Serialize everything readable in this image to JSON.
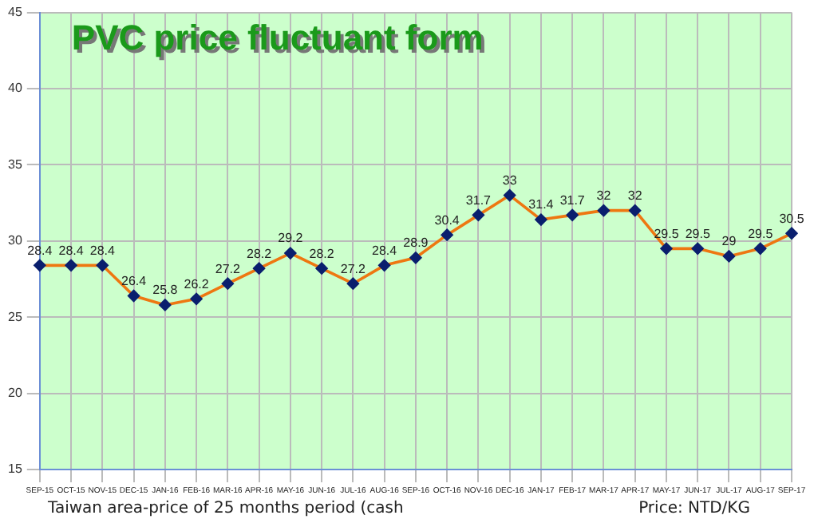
{
  "chart_data": {
    "type": "line",
    "title": "PVC price fluctuant form",
    "categories": [
      "SEP-15",
      "OCT-15",
      "NOV-15",
      "DEC-15",
      "JAN-16",
      "FEB-16",
      "MAR-16",
      "APR-16",
      "MAY-16",
      "JUN-16",
      "JUL-16",
      "AUG-16",
      "SEP-16",
      "OCT-16",
      "NOV-16",
      "DEC-16",
      "JAN-17",
      "FEB-17",
      "MAR-17",
      "APR-17",
      "MAY-17",
      "JUN-17",
      "JUL-17",
      "AUG-17",
      "SEP-17"
    ],
    "series": [
      {
        "color": "#ee7711",
        "values": [
          28.4,
          28.4,
          28.4,
          26.4,
          25.8,
          26.2,
          27.2,
          28.2,
          29.2,
          28.2,
          27.2,
          28.4,
          28.9,
          30.4,
          31.7,
          33,
          31.4,
          31.7,
          32,
          32,
          29.5,
          29.5,
          29,
          29.5,
          30.5
        ]
      }
    ],
    "ylim": [
      15,
      45
    ],
    "yticks": [
      15,
      20,
      25,
      30,
      35,
      40,
      45
    ],
    "grid": true,
    "marker": "diamond",
    "data_labels": true,
    "legend": false,
    "annotations": [
      "Taiwan area-price of 25 months period (cash",
      "Price: NTD/KG"
    ]
  }
}
